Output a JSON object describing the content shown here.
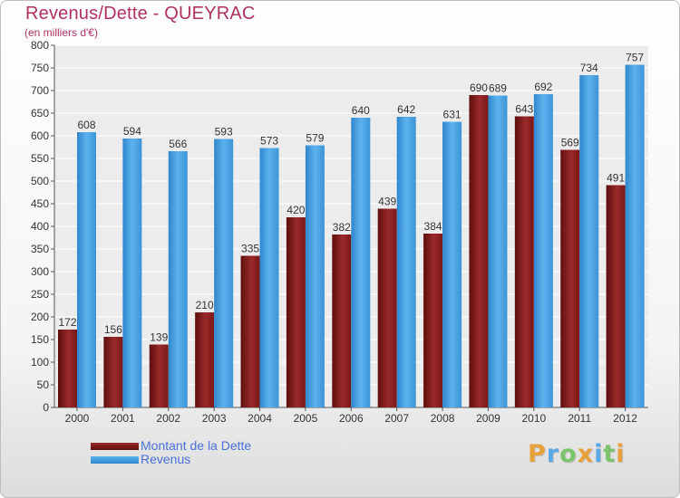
{
  "header": {
    "title": "Revenus/Dette - QUEYRAC",
    "subtitle": "(en milliers d'€)"
  },
  "chart_data": {
    "type": "bar",
    "title": "Revenus/Dette - QUEYRAC",
    "subtitle": "(en milliers d'€)",
    "categories": [
      "2000",
      "2001",
      "2002",
      "2003",
      "2004",
      "2005",
      "2006",
      "2007",
      "2008",
      "2009",
      "2010",
      "2011",
      "2012"
    ],
    "series": [
      {
        "name": "Montant de la Dette",
        "color": "#8b1a1a",
        "values": [
          172,
          156,
          139,
          210,
          335,
          420,
          382,
          439,
          384,
          690,
          643,
          569,
          491
        ]
      },
      {
        "name": "Revenus",
        "color": "#4ea6e6",
        "values": [
          608,
          594,
          566,
          593,
          573,
          579,
          640,
          642,
          631,
          689,
          692,
          734,
          757
        ]
      }
    ],
    "ylim": [
      0,
      800
    ],
    "yticks": [
      0,
      50,
      100,
      150,
      200,
      250,
      300,
      350,
      400,
      450,
      500,
      550,
      600,
      650,
      700,
      750,
      800
    ],
    "grid": true,
    "legend_position": "bottom-left"
  },
  "logo": {
    "letters": [
      "P",
      "r",
      "o",
      "x",
      "i",
      "t",
      "i"
    ],
    "colors": [
      "#e8a03a",
      "#5aa9e6",
      "#7cc36b",
      "#e8a03a",
      "#5aa9e6",
      "#7cc36b",
      "#e8a03a"
    ]
  }
}
